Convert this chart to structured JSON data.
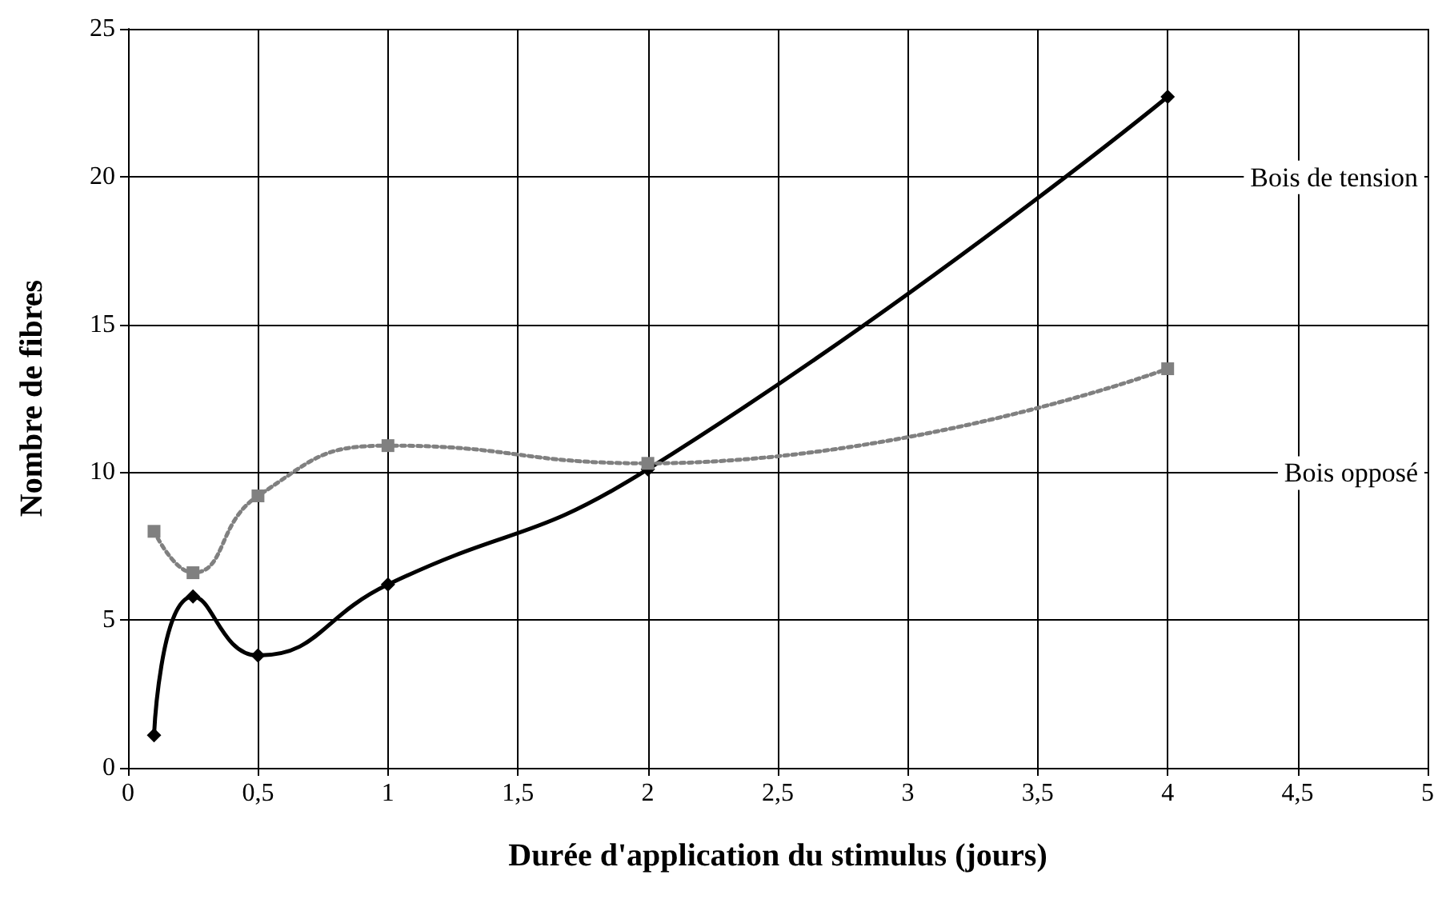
{
  "chart_data": {
    "type": "line",
    "xlabel": "Durée d'application du stimulus (jours)",
    "ylabel": "Nombre de fibres",
    "series": [
      {
        "name": "Bois de tension",
        "color": "#000000",
        "marker": "diamond",
        "line_style": "solid",
        "x": [
          0.1,
          0.25,
          0.5,
          1,
          2,
          4
        ],
        "values": [
          1.1,
          5.8,
          3.8,
          6.2,
          10.1,
          22.7
        ]
      },
      {
        "name": "Bois opposé",
        "color": "#808080",
        "marker": "square",
        "line_style": "dotted",
        "x": [
          0.1,
          0.25,
          0.5,
          1,
          2,
          4
        ],
        "values": [
          8.0,
          6.6,
          9.2,
          10.9,
          10.3,
          13.5
        ]
      }
    ],
    "xlim": [
      0,
      5
    ],
    "xticks": [
      0,
      {
        "value": 0.5,
        "label": "0,5"
      },
      1,
      {
        "value": 1.5,
        "label": "1,5"
      },
      2,
      {
        "value": 2.5,
        "label": "2,5"
      },
      3,
      {
        "value": 3.5,
        "label": "3,5"
      },
      4,
      {
        "value": 4.5,
        "label": "4,5"
      },
      5
    ],
    "ylim": [
      0,
      25
    ],
    "yticks": [
      0,
      5,
      10,
      15,
      20,
      25
    ],
    "grid": true,
    "legend": false
  }
}
